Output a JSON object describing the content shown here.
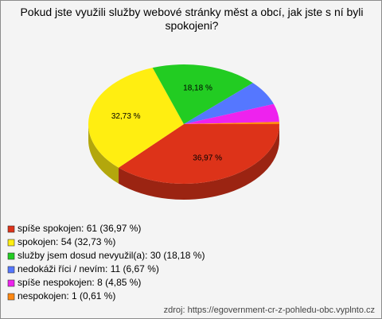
{
  "chart_data": {
    "type": "pie3d",
    "title": "Pokud jste využili služby webové stránky měst a obcí, jak jste s ní byli spokojeni?",
    "categories": [
      "spíše spokojen: 61 (36,97 %)",
      "spokojen: 54 (32,73 %)",
      "služby jsem dosud nevyužil(a): 30 (18,18 %)",
      "nedokáži říci / nevím: 11 (6,67 %)",
      "spíše nespokojen: 8 (4,85 %)",
      "nespokojen: 1 (0,61 %)"
    ],
    "values": [
      36.97,
      32.73,
      18.18,
      6.67,
      4.85,
      0.61
    ],
    "value_labels": [
      "36,97 %",
      "32,73 %",
      "18,18 %",
      null,
      null,
      null
    ],
    "colors": [
      "#dd3319",
      "#ffee11",
      "#22cc22",
      "#5577ff",
      "#ee22ee",
      "#ff8811"
    ],
    "source": "zdroj: https://egovernment-cr-z-pohledu-obc.vyplnto.cz"
  }
}
